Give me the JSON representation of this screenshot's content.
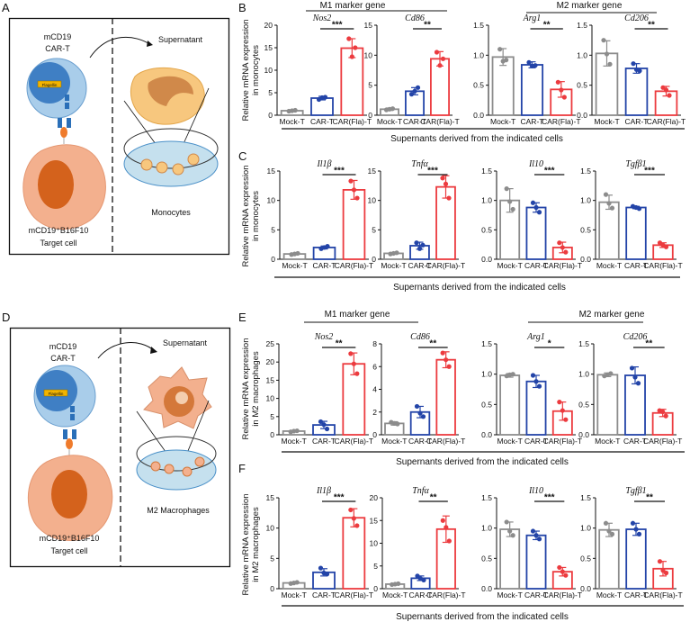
{
  "panel_labels": [
    "A",
    "B",
    "C",
    "D",
    "E",
    "F"
  ],
  "schematic_A": {
    "car_t_line1": "mCD19",
    "car_t_line2": "CAR-T",
    "gene_box": "Flagellin",
    "supernatant": "Supernatant",
    "target_line1": "mCD19⁺B16F10",
    "target_line2": "Target cell",
    "recipient": "Monocytes"
  },
  "schematic_D": {
    "car_t_line1": "mCD19",
    "car_t_line2": "CAR-T",
    "gene_box": "Flagellin",
    "supernatant": "Supernatant",
    "target_line1": "mCD19⁺B16F10",
    "target_line2": "Target cell",
    "recipient": "M2 Macrophages"
  },
  "group_headers": {
    "m1": "M1 marker gene",
    "m2": "M2 marker gene"
  },
  "row_xlabel": "Supernants derived from the indicated cells",
  "ylabels": {
    "monocytes": [
      "Relative mRNA expression",
      "in monocytes"
    ],
    "macrophages": [
      "Relative mRNA expression",
      "in M2 macrophages"
    ]
  },
  "colors": {
    "Mock-T": "#8c8c8c",
    "CAR-T": "#2344a8",
    "CAR(Fla)-T": "#ec3b3f"
  },
  "chart_data": [
    {
      "panel": "B",
      "type": "bar",
      "title": "Nos2",
      "categories": [
        "Mock-T",
        "CAR-T",
        "CAR(Fla)-T"
      ],
      "ylim": [
        0,
        20
      ],
      "yticks": [
        "0",
        "5",
        "10",
        "15",
        "20"
      ],
      "values": [
        1.0,
        3.8,
        14.9
      ],
      "sd": [
        0.2,
        0.4,
        2.1
      ],
      "points": [
        [
          0.9,
          1.0,
          1.1
        ],
        [
          3.5,
          3.9,
          4.0
        ],
        [
          17.0,
          13.0,
          15.0
        ]
      ],
      "significance": "***"
    },
    {
      "panel": "B",
      "type": "bar",
      "title": "Cd86",
      "categories": [
        "Mock-T",
        "CAR-T",
        "CAR(Fla)-T"
      ],
      "ylim": [
        0,
        15
      ],
      "yticks": [
        "0",
        "5",
        "10",
        "15"
      ],
      "values": [
        1.0,
        4.0,
        9.4
      ],
      "sd": [
        0.2,
        0.6,
        1.2
      ],
      "points": [
        [
          0.9,
          1.0,
          1.1
        ],
        [
          3.5,
          4.0,
          4.6
        ],
        [
          10.5,
          8.3,
          9.4
        ]
      ],
      "significance": "**"
    },
    {
      "panel": "B",
      "type": "bar",
      "title": "Arg1",
      "categories": [
        "Mock-T",
        "CAR-T",
        "CAR(Fla)-T"
      ],
      "ylim": [
        0,
        1.5
      ],
      "yticks": [
        "0.0",
        "0.5",
        "1.0",
        "1.5"
      ],
      "values": [
        0.97,
        0.84,
        0.43
      ],
      "sd": [
        0.14,
        0.05,
        0.13
      ],
      "points": [
        [
          1.1,
          0.9,
          0.92
        ],
        [
          0.88,
          0.82,
          0.83
        ],
        [
          0.55,
          0.42,
          0.3
        ]
      ],
      "significance": "**"
    },
    {
      "panel": "B",
      "type": "bar",
      "title": "Cd206",
      "categories": [
        "Mock-T",
        "CAR-T",
        "CAR(Fla)-T"
      ],
      "ylim": [
        0,
        1.5
      ],
      "yticks": [
        "0.0",
        "0.5",
        "1.0",
        "1.5"
      ],
      "values": [
        1.03,
        0.78,
        0.4
      ],
      "sd": [
        0.21,
        0.08,
        0.08
      ],
      "points": [
        [
          1.25,
          1.02,
          0.85
        ],
        [
          0.86,
          0.76,
          0.74
        ],
        [
          0.46,
          0.42,
          0.33
        ]
      ],
      "significance": "**"
    },
    {
      "panel": "C",
      "type": "bar",
      "title": "Il1β",
      "categories": [
        "Mock-T",
        "CAR-T",
        "CAR(Fla)-T"
      ],
      "ylim": [
        0,
        15
      ],
      "yticks": [
        "0",
        "5",
        "10",
        "15"
      ],
      "values": [
        0.9,
        2.0,
        11.8
      ],
      "sd": [
        0.15,
        0.25,
        1.6
      ],
      "points": [
        [
          0.8,
          0.9,
          1.0
        ],
        [
          1.8,
          2.0,
          2.2
        ],
        [
          13.3,
          11.8,
          10.4
        ]
      ],
      "significance": "***"
    },
    {
      "panel": "C",
      "type": "bar",
      "title": "Tnfα",
      "categories": [
        "Mock-T",
        "CAR-T",
        "CAR(Fla)-T"
      ],
      "ylim": [
        0,
        15
      ],
      "yticks": [
        "0",
        "5",
        "10",
        "15"
      ],
      "values": [
        1.0,
        2.3,
        12.3
      ],
      "sd": [
        0.15,
        0.6,
        1.9
      ],
      "points": [
        [
          0.9,
          1.0,
          1.1
        ],
        [
          2.8,
          1.8,
          2.4
        ],
        [
          13.8,
          12.8,
          10.4
        ]
      ],
      "significance": "***"
    },
    {
      "panel": "C",
      "type": "bar",
      "title": "Il10",
      "categories": [
        "Mock-T",
        "CAR-T",
        "CAR(Fla)-T"
      ],
      "ylim": [
        0,
        1.5
      ],
      "yticks": [
        "0.0",
        "0.5",
        "1.0",
        "1.5"
      ],
      "values": [
        1.0,
        0.88,
        0.2
      ],
      "sd": [
        0.2,
        0.08,
        0.09
      ],
      "points": [
        [
          1.2,
          0.98,
          0.85
        ],
        [
          0.96,
          0.88,
          0.8
        ],
        [
          0.28,
          0.2,
          0.12
        ]
      ],
      "significance": "***"
    },
    {
      "panel": "C",
      "type": "bar",
      "title": "Tgfβ1",
      "categories": [
        "Mock-T",
        "CAR-T",
        "CAR(Fla)-T"
      ],
      "ylim": [
        0,
        1.5
      ],
      "yticks": [
        "0.0",
        "0.5",
        "1.0",
        "1.5"
      ],
      "values": [
        0.97,
        0.88,
        0.24
      ],
      "sd": [
        0.12,
        0.02,
        0.04
      ],
      "points": [
        [
          1.1,
          0.95,
          0.87
        ],
        [
          0.9,
          0.88,
          0.86
        ],
        [
          0.28,
          0.24,
          0.21
        ]
      ],
      "significance": "***"
    },
    {
      "panel": "E",
      "type": "bar",
      "title": "Nos2",
      "categories": [
        "Mock-T",
        "CAR-T",
        "CAR(Fla)-T"
      ],
      "ylim": [
        0,
        25
      ],
      "yticks": [
        "0",
        "5",
        "10",
        "15",
        "20",
        "25"
      ],
      "values": [
        1.0,
        2.7,
        19.5
      ],
      "sd": [
        0.2,
        1.0,
        3.0
      ],
      "points": [
        [
          0.8,
          1.0,
          1.1
        ],
        [
          3.6,
          2.8,
          1.6
        ],
        [
          22.3,
          19.5,
          16.8
        ]
      ],
      "significance": "**"
    },
    {
      "panel": "E",
      "type": "bar",
      "title": "Cd86",
      "categories": [
        "Mock-T",
        "CAR-T",
        "CAR(Fla)-T"
      ],
      "ylim": [
        0,
        8
      ],
      "yticks": [
        "0",
        "2",
        "4",
        "6",
        "8"
      ],
      "values": [
        1.0,
        2.0,
        6.6
      ],
      "sd": [
        0.15,
        0.5,
        0.7
      ],
      "points": [
        [
          1.1,
          1.0,
          0.95
        ],
        [
          2.5,
          1.9,
          1.6
        ],
        [
          7.2,
          6.6,
          6.0
        ]
      ],
      "significance": "**"
    },
    {
      "panel": "E",
      "type": "bar",
      "title": "Arg1",
      "categories": [
        "Mock-T",
        "CAR-T",
        "CAR(Fla)-T"
      ],
      "ylim": [
        0,
        1.5
      ],
      "yticks": [
        "0.0",
        "0.5",
        "1.0",
        "1.5"
      ],
      "values": [
        0.98,
        0.88,
        0.39
      ],
      "sd": [
        0.03,
        0.1,
        0.15
      ],
      "points": [
        [
          0.97,
          0.99,
          1.0
        ],
        [
          0.98,
          0.88,
          0.8
        ],
        [
          0.54,
          0.4,
          0.25
        ]
      ],
      "significance": "*"
    },
    {
      "panel": "E",
      "type": "bar",
      "title": "Cd206",
      "categories": [
        "Mock-T",
        "CAR-T",
        "CAR(Fla)-T"
      ],
      "ylim": [
        0,
        1.5
      ],
      "yticks": [
        "0.0",
        "0.5",
        "1.0",
        "1.5"
      ],
      "values": [
        0.99,
        0.98,
        0.36
      ],
      "sd": [
        0.03,
        0.14,
        0.06
      ],
      "points": [
        [
          0.97,
          0.99,
          1.01
        ],
        [
          1.1,
          0.95,
          0.85
        ],
        [
          0.4,
          0.38,
          0.31
        ]
      ],
      "significance": "**"
    },
    {
      "panel": "F",
      "type": "bar",
      "title": "Il1β",
      "categories": [
        "Mock-T",
        "CAR-T",
        "CAR(Fla)-T"
      ],
      "ylim": [
        0,
        15
      ],
      "yticks": [
        "0",
        "5",
        "10",
        "15"
      ],
      "values": [
        0.95,
        2.7,
        11.7
      ],
      "sd": [
        0.15,
        0.6,
        1.5
      ],
      "points": [
        [
          0.85,
          0.95,
          1.05
        ],
        [
          3.4,
          2.6,
          2.4
        ],
        [
          13.0,
          11.6,
          10.4
        ]
      ],
      "significance": "***"
    },
    {
      "panel": "F",
      "type": "bar",
      "title": "Tnfα",
      "categories": [
        "Mock-T",
        "CAR-T",
        "CAR(Fla)-T"
      ],
      "ylim": [
        0,
        20
      ],
      "yticks": [
        "0",
        "5",
        "10",
        "15",
        "20"
      ],
      "values": [
        1.0,
        2.3,
        13.1
      ],
      "sd": [
        0.15,
        0.5,
        2.9
      ],
      "points": [
        [
          0.9,
          1.0,
          1.1
        ],
        [
          2.8,
          2.2,
          1.9
        ],
        [
          15.0,
          13.5,
          10.5
        ]
      ],
      "significance": "**"
    },
    {
      "panel": "F",
      "type": "bar",
      "title": "Il10",
      "categories": [
        "Mock-T",
        "CAR-T",
        "CAR(Fla)-T"
      ],
      "ylim": [
        0,
        1.5
      ],
      "yticks": [
        "0.0",
        "0.5",
        "1.0",
        "1.5"
      ],
      "values": [
        0.98,
        0.88,
        0.28
      ],
      "sd": [
        0.12,
        0.07,
        0.07
      ],
      "points": [
        [
          1.1,
          0.95,
          0.88
        ],
        [
          0.95,
          0.88,
          0.82
        ],
        [
          0.35,
          0.28,
          0.22
        ]
      ],
      "significance": "***"
    },
    {
      "panel": "F",
      "type": "bar",
      "title": "Tgfβ1",
      "categories": [
        "Mock-T",
        "CAR-T",
        "CAR(Fla)-T"
      ],
      "ylim": [
        0,
        1.5
      ],
      "yticks": [
        "0.0",
        "0.5",
        "1.0",
        "1.5"
      ],
      "values": [
        0.97,
        0.98,
        0.33
      ],
      "sd": [
        0.11,
        0.1,
        0.12
      ],
      "points": [
        [
          1.08,
          0.95,
          0.9
        ],
        [
          1.08,
          0.98,
          0.9
        ],
        [
          0.45,
          0.3,
          0.26
        ]
      ],
      "significance": "**"
    }
  ]
}
